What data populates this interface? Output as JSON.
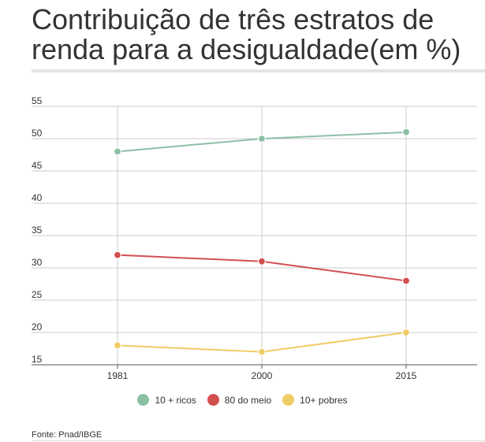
{
  "title": "Contribuição de três estratos de renda para a desigualdade(em %)",
  "source": "Fonte: Pnad/IBGE",
  "chart_data": {
    "type": "line",
    "title": "Contribuição de três estratos de renda para a desigualdade(em %)",
    "xlabel": "",
    "ylabel": "",
    "categories": [
      "1981",
      "2000",
      "2015"
    ],
    "yticks": [
      "55",
      "50",
      "45",
      "40",
      "35",
      "30",
      "25",
      "20",
      "15"
    ],
    "ylim": [
      15,
      55
    ],
    "grid": true,
    "legend_position": "bottom",
    "series": [
      {
        "name": "10 + ricos",
        "color": "#8cc0a5",
        "values": [
          48,
          50,
          51
        ]
      },
      {
        "name": "80 do meio",
        "color": "#d24f4f",
        "values": [
          32,
          31,
          28
        ]
      },
      {
        "name": "10+ pobres",
        "color": "#f0cc66",
        "values": [
          18,
          17,
          20
        ]
      }
    ]
  }
}
